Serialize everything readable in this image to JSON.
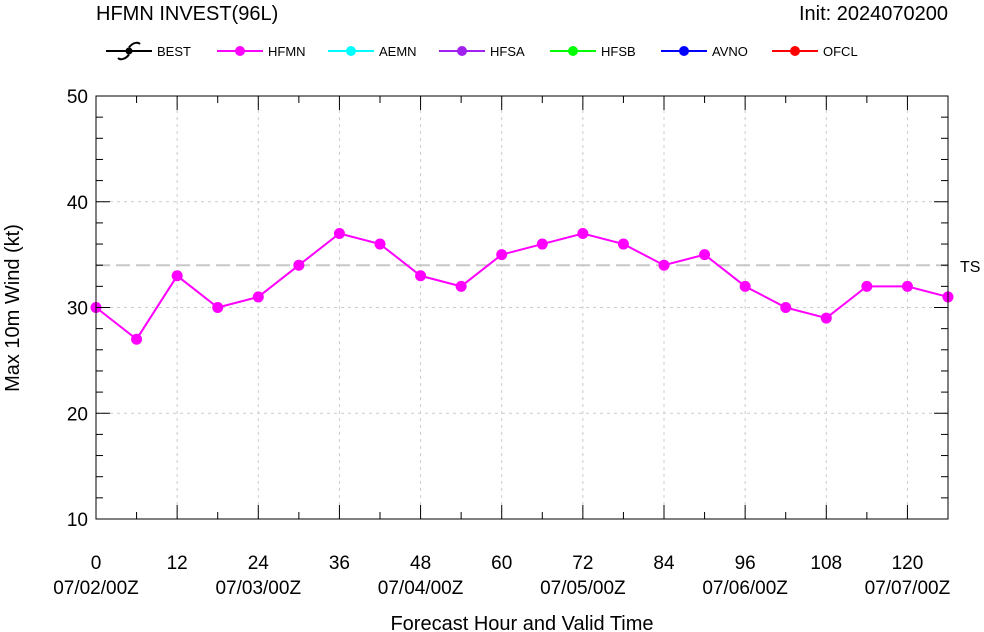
{
  "title_left": "HFMN INVEST(96L)",
  "title_right": "Init: 2024070200",
  "legend": [
    {
      "name": "BEST",
      "color": "#000000",
      "icon": "hurricane-symbol-icon"
    },
    {
      "name": "HFMN",
      "color": "#ff00ff"
    },
    {
      "name": "AEMN",
      "color": "#00ffff"
    },
    {
      "name": "HFSA",
      "color": "#a020f0"
    },
    {
      "name": "HFSB",
      "color": "#00ff00"
    },
    {
      "name": "AVNO",
      "color": "#0000ff"
    },
    {
      "name": "OFCL",
      "color": "#ff0000"
    }
  ],
  "chart_data": {
    "type": "line",
    "xlabel": "Forecast Hour and Valid Time",
    "ylabel": "Max 10m Wind (kt)",
    "xlim": [
      0,
      126
    ],
    "ylim": [
      10,
      50
    ],
    "x_ticks": [
      0,
      12,
      24,
      36,
      48,
      60,
      72,
      84,
      96,
      108,
      120
    ],
    "y_ticks": [
      10,
      20,
      30,
      40,
      50
    ],
    "date_ticks": [
      {
        "x": 0,
        "label": "07/02/00Z"
      },
      {
        "x": 24,
        "label": "07/03/00Z"
      },
      {
        "x": 48,
        "label": "07/04/00Z"
      },
      {
        "x": 72,
        "label": "07/05/00Z"
      },
      {
        "x": 96,
        "label": "07/06/00Z"
      },
      {
        "x": 120,
        "label": "07/07/00Z"
      }
    ],
    "reference_line": {
      "y": 34,
      "label": "TS"
    },
    "grid": true,
    "series": [
      {
        "name": "HFMN",
        "color": "#ff00ff",
        "x": [
          0,
          6,
          12,
          18,
          24,
          30,
          36,
          42,
          48,
          54,
          60,
          66,
          72,
          78,
          84,
          90,
          96,
          102,
          108,
          114,
          120,
          126
        ],
        "y": [
          30,
          27,
          33,
          30,
          31,
          34,
          37,
          36,
          33,
          32,
          35,
          36,
          37,
          36,
          34,
          35,
          32,
          30,
          29,
          32,
          32,
          31
        ]
      }
    ]
  }
}
